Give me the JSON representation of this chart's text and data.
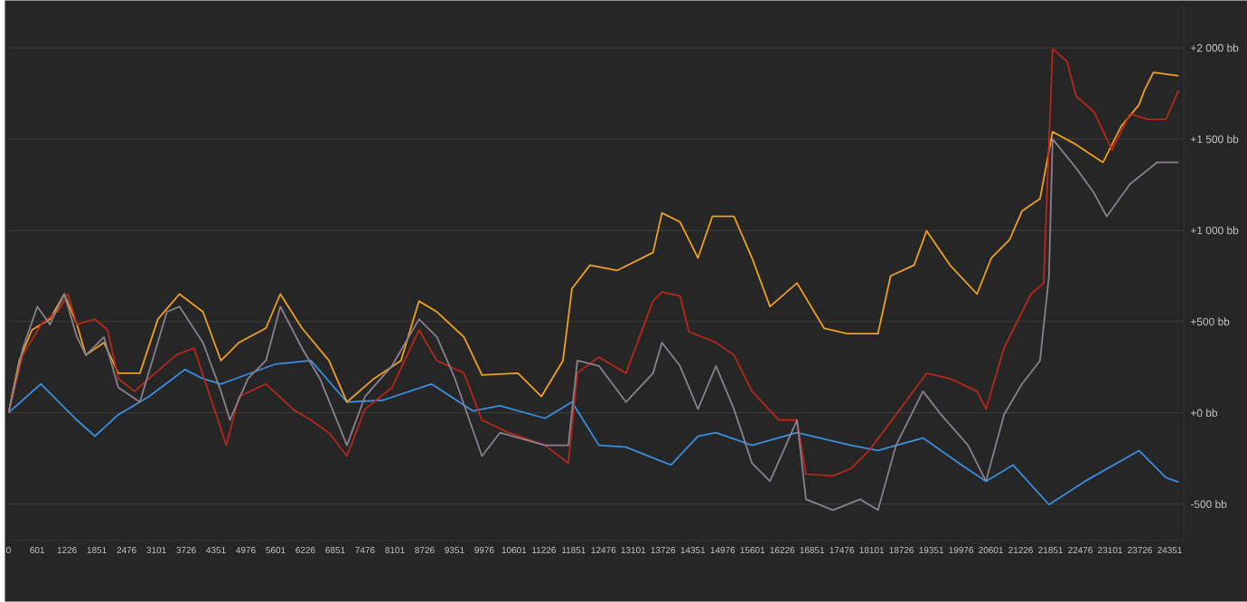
{
  "chart_data": {
    "type": "line",
    "xlim": [
      0,
      24650
    ],
    "ylim": [
      -700,
      2260
    ],
    "xticks": [
      0,
      601,
      1226,
      1851,
      2476,
      3101,
      3726,
      4351,
      4976,
      5601,
      6226,
      6851,
      7476,
      8101,
      8726,
      9351,
      9976,
      10601,
      11226,
      11851,
      12476,
      13101,
      13726,
      14351,
      14976,
      15601,
      16226,
      16851,
      17476,
      18101,
      18726,
      19351,
      19976,
      20601,
      21226,
      21851,
      22476,
      23101,
      23726,
      24351
    ],
    "yticks": [
      {
        "value": -500,
        "label": "-500 bb"
      },
      {
        "value": 0,
        "label": "+0 bb"
      },
      {
        "value": 500,
        "label": "+500 bb"
      },
      {
        "value": 1000,
        "label": "+1 000 bb"
      },
      {
        "value": 1500,
        "label": "+1 500 bb"
      },
      {
        "value": 2000,
        "label": "+2 000 bb"
      }
    ],
    "grid": "y",
    "marker": "none",
    "line_style": "solid",
    "series": [
      {
        "color": "#3a8ee0",
        "x": [
          0,
          680,
          1435,
          1812,
          2303,
          2945,
          3700,
          4077,
          4455,
          5587,
          6342,
          7097,
          7852,
          8871,
          9740,
          10306,
          11250,
          11816,
          12382,
          12948,
          13892,
          14458,
          14836,
          15591,
          16535,
          17667,
          18233,
          19177,
          19932,
          20498,
          21065,
          21819,
          22575,
          23707,
          24272,
          24537
        ],
        "values": [
          0,
          158,
          -40,
          -128,
          -10,
          89,
          237,
          187,
          158,
          266,
          286,
          59,
          69,
          158,
          10,
          39,
          -30,
          59,
          -178,
          -188,
          -286,
          -128,
          -109,
          -178,
          -109,
          -178,
          -207,
          -138,
          -276,
          -375,
          -286,
          -503,
          -375,
          -207,
          -355,
          -380
        ]
      },
      {
        "color": "#f0a020",
        "x": [
          0,
          226,
          491,
          868,
          1170,
          1435,
          1623,
          2001,
          2303,
          2756,
          3133,
          3586,
          4077,
          4455,
          4832,
          5398,
          5700,
          6153,
          6720,
          7097,
          7663,
          8230,
          8607,
          8985,
          9551,
          9928,
          10683,
          11174,
          11627,
          11816,
          12193,
          12760,
          13515,
          13703,
          14081,
          14458,
          14760,
          15213,
          15591,
          15968,
          16535,
          17101,
          17592,
          18233,
          18498,
          18989,
          19253,
          19743,
          20310,
          20611,
          20989,
          21253,
          21631,
          21895,
          22386,
          22952,
          23330,
          23707,
          23820,
          24008,
          24537
        ],
        "values": [
          0,
          286,
          454,
          513,
          651,
          484,
          316,
          385,
          217,
          217,
          513,
          651,
          553,
          286,
          385,
          464,
          651,
          464,
          286,
          59,
          187,
          286,
          612,
          553,
          415,
          207,
          217,
          89,
          286,
          681,
          809,
          780,
          878,
          1095,
          1046,
          849,
          1076,
          1076,
          849,
          582,
          711,
          464,
          434,
          434,
          750,
          809,
          997,
          809,
          651,
          849,
          947,
          1105,
          1174,
          1540,
          1470,
          1372,
          1569,
          1688,
          1767,
          1865,
          1846
        ]
      },
      {
        "color": "#b8281a",
        "x": [
          0,
          302,
          680,
          1057,
          1246,
          1435,
          1812,
          2076,
          2303,
          2643,
          2945,
          3511,
          3888,
          4266,
          4568,
          4832,
          5398,
          5965,
          6342,
          6720,
          7097,
          7475,
          8041,
          8607,
          8985,
          9551,
          9928,
          10495,
          11250,
          11740,
          11929,
          12382,
          12948,
          13515,
          13703,
          14081,
          14270,
          14836,
          15213,
          15591,
          16157,
          16535,
          16723,
          17290,
          17667,
          18045,
          18611,
          19253,
          19743,
          20310,
          20498,
          20876,
          21442,
          21706,
          21895,
          22197,
          22386,
          22763,
          23141,
          23518,
          23895,
          24272,
          24537
        ],
        "values": [
          0,
          316,
          484,
          563,
          651,
          484,
          513,
          454,
          187,
          118,
          187,
          316,
          355,
          59,
          -178,
          89,
          158,
          20,
          -40,
          -109,
          -237,
          20,
          138,
          454,
          286,
          217,
          -40,
          -109,
          -178,
          -276,
          217,
          306,
          217,
          612,
          662,
          641,
          444,
          385,
          316,
          118,
          -40,
          -40,
          -336,
          -345,
          -306,
          -207,
          -10,
          217,
          187,
          118,
          20,
          355,
          651,
          711,
          1994,
          1925,
          1737,
          1648,
          1441,
          1638,
          1608,
          1608,
          1767
        ]
      },
      {
        "color": "#8a8090",
        "x": [
          0,
          302,
          604,
          868,
          1170,
          1435,
          1623,
          2001,
          2303,
          2756,
          3322,
          3586,
          4077,
          4455,
          4643,
          5021,
          5398,
          5700,
          6153,
          6531,
          7097,
          7475,
          8041,
          8607,
          8985,
          9362,
          9928,
          10306,
          11250,
          11740,
          11929,
          12382,
          12948,
          13515,
          13703,
          14081,
          14458,
          14836,
          15213,
          15591,
          15968,
          16535,
          16723,
          17290,
          17856,
          18233,
          18611,
          19177,
          19555,
          20121,
          20498,
          20876,
          21253,
          21631,
          21819,
          21895,
          22386,
          22763,
          23028,
          23518,
          24084,
          24537
        ],
        "values": [
          0,
          355,
          582,
          484,
          651,
          415,
          316,
          415,
          138,
          59,
          553,
          582,
          385,
          118,
          -40,
          187,
          286,
          582,
          355,
          187,
          -178,
          89,
          257,
          513,
          415,
          187,
          -237,
          -109,
          -178,
          -178,
          286,
          257,
          59,
          217,
          385,
          257,
          20,
          257,
          20,
          -276,
          -375,
          -40,
          -474,
          -533,
          -474,
          -533,
          -178,
          118,
          -10,
          -178,
          -375,
          -10,
          158,
          286,
          750,
          1500,
          1342,
          1204,
          1076,
          1253,
          1372,
          1372
        ]
      }
    ]
  }
}
